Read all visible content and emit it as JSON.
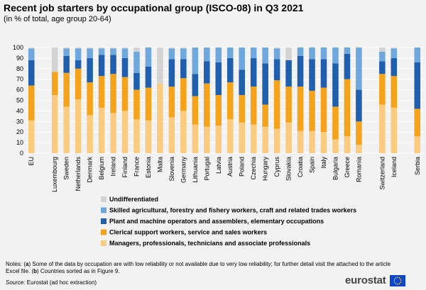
{
  "title": "Recent job starters by occupational group (ISCO-08) in Q3 2021",
  "subtitle": "(in % of total, age group 20-64)",
  "notes_prefix": "Notes: (",
  "notes_a": "a",
  "notes_text1": ") Some of the data by occupation are with low reliability or not available due to very low reliability; for further  detail visit the attached to the article Excel file. (",
  "notes_b": "b",
  "notes_text2": ") Countries sorted as in Figure 9.",
  "source_label": "Source:",
  "source_text": " Eurostat (ad hoc extraction)",
  "logo_text": "eurostat",
  "colors": {
    "undifferentiated": "#d3d3d3",
    "skilled": "#6fa8dc",
    "plant": "#1f5fad",
    "clerical": "#f5a31a",
    "managers": "#fbcc7f",
    "background": "#f2f2f2",
    "grid": "#ffffff"
  },
  "chart_data": {
    "type": "bar",
    "stacked": true,
    "ylim": [
      0,
      100
    ],
    "yticks": [
      0,
      10,
      20,
      30,
      40,
      50,
      60,
      70,
      80,
      90,
      100
    ],
    "grid": true,
    "legend_position": "bottom",
    "categories": [
      "EU",
      "Luxembourg",
      "Sweden",
      "Netherlands",
      "Denmark",
      "Belgium",
      "Ireland",
      "Finland",
      "France",
      "Estonia",
      "Malta",
      "Slovenia",
      "Germany",
      "Lithuania",
      "Portugal",
      "Latvia",
      "Austria",
      "Poland",
      "Czechia",
      "Hungary",
      "Cyprus",
      "Slovakia",
      "Croatia",
      "Spain",
      "Italy",
      "Bulgaria",
      "Greece",
      "Romania",
      "Switzerland",
      "Iceland",
      "Serbia"
    ],
    "series": [
      {
        "name": "Managers, professionals, technicians and associate professionals",
        "color_key": "managers",
        "values": [
          31,
          55,
          44,
          51,
          36,
          43,
          38,
          40,
          32,
          31,
          66,
          34,
          40,
          27,
          25,
          26,
          32,
          29,
          27,
          25,
          23,
          29,
          21,
          21,
          20,
          13,
          16,
          8,
          46,
          43,
          16
        ]
      },
      {
        "name": "Clerical support workers, service and sales workers",
        "color_key": "clerical",
        "values": [
          33,
          22,
          32,
          29,
          31,
          30,
          37,
          32,
          28,
          31,
          0,
          29,
          31,
          27,
          41,
          29,
          35,
          26,
          36,
          21,
          46,
          34,
          42,
          38,
          42,
          31,
          54,
          22,
          29,
          30,
          26
        ]
      },
      {
        "name": "Plant and machine operators and assemblers, elementary occupations",
        "color_key": "plant",
        "values": [
          24,
          0,
          16,
          8,
          23,
          20,
          18,
          18,
          16,
          20,
          0,
          26,
          18,
          21,
          21,
          31,
          23,
          24,
          27,
          39,
          20,
          25,
          29,
          30,
          27,
          41,
          24,
          30,
          12,
          17,
          44
        ]
      },
      {
        "name": "Skilled agricultural, forestry and fishery workers, craft and related trades workers",
        "color_key": "skilled",
        "values": [
          11,
          0,
          7,
          11,
          9,
          6,
          6,
          9,
          20,
          18,
          0,
          10,
          10,
          25,
          13,
          14,
          10,
          21,
          10,
          15,
          10,
          0,
          8,
          11,
          11,
          15,
          6,
          40,
          9,
          9,
          14
        ]
      },
      {
        "name": "Undifferentiated",
        "color_key": "undifferentiated",
        "values": [
          1,
          23,
          1,
          1,
          1,
          1,
          1,
          1,
          4,
          0,
          34,
          1,
          1,
          0,
          0,
          0,
          0,
          0,
          0,
          0,
          1,
          12,
          0,
          0,
          0,
          0,
          0,
          0,
          4,
          1,
          0
        ]
      }
    ],
    "legend_order": [
      "Undifferentiated",
      "Skilled agricultural, forestry and fishery workers, craft and related trades workers",
      "Plant and machine operators and assemblers, elementary occupations",
      "Clerical support workers, service and sales workers",
      "Managers, professionals, technicians and associate professionals"
    ]
  }
}
